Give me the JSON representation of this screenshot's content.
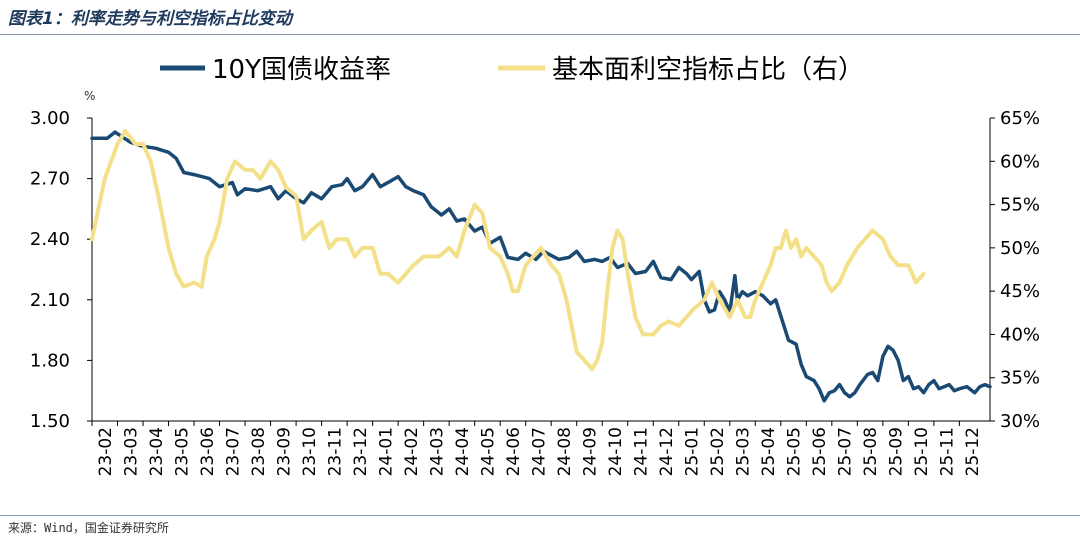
{
  "figure": {
    "title": "图表1：利率走势与利空指标占比变动",
    "source": "来源：Wind，国金证券研究所"
  },
  "colors": {
    "yield": "#1a4a73",
    "ratio": "#f5e08a",
    "axis": "#000000",
    "text": "#000000"
  },
  "chart_data": {
    "type": "line",
    "title": "图表1：利率走势与利空指标占比变动",
    "left_axis": {
      "unit_label": "%",
      "range": [
        1.5,
        3.0
      ],
      "ticks": [
        "3.00",
        "2.70",
        "2.40",
        "2.10",
        "1.80",
        "1.50"
      ],
      "tick_values": [
        3.0,
        2.7,
        2.4,
        2.1,
        1.8,
        1.5
      ]
    },
    "right_axis": {
      "range": [
        30,
        65
      ],
      "ticks": [
        "65%",
        "60%",
        "55%",
        "50%",
        "45%",
        "40%",
        "35%",
        "30%"
      ],
      "tick_values": [
        65,
        60,
        55,
        50,
        45,
        40,
        35,
        30
      ]
    },
    "x_range": [
      0,
      35.2
    ],
    "categories": [
      "23-02",
      "23-03",
      "23-04",
      "23-05",
      "23-06",
      "23-07",
      "23-08",
      "23-09",
      "23-10",
      "23-11",
      "23-12",
      "24-01",
      "24-02",
      "24-03",
      "24-04",
      "24-05",
      "24-06",
      "24-07",
      "24-08",
      "24-09",
      "24-10",
      "24-11",
      "24-12",
      "25-01",
      "25-02",
      "25-03",
      "25-04",
      "25-05",
      "25-06",
      "25-07",
      "25-08",
      "25-09",
      "25-10",
      "25-11",
      "25-12"
    ],
    "series": [
      {
        "name": "10Y国债收益率",
        "axis": "left",
        "points": [
          [
            0,
            2.9
          ],
          [
            0.6,
            2.9
          ],
          [
            0.9,
            2.93
          ],
          [
            1.5,
            2.88
          ],
          [
            2.0,
            2.86
          ],
          [
            2.5,
            2.85
          ],
          [
            3.0,
            2.83
          ],
          [
            3.3,
            2.8
          ],
          [
            3.6,
            2.73
          ],
          [
            4.0,
            2.72
          ],
          [
            4.6,
            2.7
          ],
          [
            5.0,
            2.66
          ],
          [
            5.5,
            2.68
          ],
          [
            5.7,
            2.62
          ],
          [
            6.0,
            2.65
          ],
          [
            6.5,
            2.64
          ],
          [
            7.0,
            2.66
          ],
          [
            7.3,
            2.6
          ],
          [
            7.6,
            2.64
          ],
          [
            8.0,
            2.6
          ],
          [
            8.3,
            2.58
          ],
          [
            8.6,
            2.63
          ],
          [
            9.0,
            2.6
          ],
          [
            9.4,
            2.66
          ],
          [
            9.8,
            2.67
          ],
          [
            10.0,
            2.7
          ],
          [
            10.3,
            2.64
          ],
          [
            10.6,
            2.66
          ],
          [
            11.0,
            2.72
          ],
          [
            11.3,
            2.66
          ],
          [
            11.6,
            2.68
          ],
          [
            12.0,
            2.71
          ],
          [
            12.3,
            2.66
          ],
          [
            12.6,
            2.64
          ],
          [
            13.0,
            2.62
          ],
          [
            13.3,
            2.56
          ],
          [
            13.7,
            2.52
          ],
          [
            14.0,
            2.55
          ],
          [
            14.3,
            2.49
          ],
          [
            14.6,
            2.5
          ],
          [
            15.0,
            2.44
          ],
          [
            15.3,
            2.46
          ],
          [
            15.6,
            2.38
          ],
          [
            16.0,
            2.41
          ],
          [
            16.3,
            2.31
          ],
          [
            16.7,
            2.3
          ],
          [
            17.0,
            2.33
          ],
          [
            17.4,
            2.3
          ],
          [
            17.7,
            2.34
          ],
          [
            18.0,
            2.32
          ],
          [
            18.3,
            2.3
          ],
          [
            18.7,
            2.31
          ],
          [
            19.0,
            2.34
          ],
          [
            19.3,
            2.29
          ],
          [
            19.7,
            2.3
          ],
          [
            20.0,
            2.29
          ],
          [
            20.3,
            2.31
          ],
          [
            20.6,
            2.26
          ],
          [
            21.0,
            2.28
          ],
          [
            21.3,
            2.23
          ],
          [
            21.7,
            2.24
          ],
          [
            22.0,
            2.29
          ],
          [
            22.3,
            2.21
          ],
          [
            22.7,
            2.2
          ],
          [
            23.0,
            2.26
          ],
          [
            23.3,
            2.23
          ],
          [
            23.5,
            2.2
          ],
          [
            23.8,
            2.24
          ],
          [
            24.0,
            2.1
          ],
          [
            24.2,
            2.04
          ],
          [
            24.4,
            2.05
          ],
          [
            24.6,
            2.14
          ],
          [
            24.8,
            2.1
          ],
          [
            25.0,
            2.04
          ],
          [
            25.2,
            2.22
          ],
          [
            25.3,
            2.1
          ],
          [
            25.5,
            2.14
          ],
          [
            25.7,
            2.12
          ],
          [
            26.0,
            2.14
          ],
          [
            26.3,
            2.12
          ],
          [
            26.6,
            2.08
          ],
          [
            26.8,
            2.1
          ],
          [
            27.0,
            2.02
          ],
          [
            27.3,
            1.9
          ],
          [
            27.6,
            1.88
          ],
          [
            27.8,
            1.78
          ],
          [
            28.0,
            1.72
          ],
          [
            28.3,
            1.7
          ],
          [
            28.5,
            1.66
          ],
          [
            28.7,
            1.6
          ],
          [
            28.9,
            1.64
          ],
          [
            29.1,
            1.65
          ],
          [
            29.3,
            1.68
          ],
          [
            29.5,
            1.64
          ],
          [
            29.7,
            1.62
          ],
          [
            29.9,
            1.64
          ],
          [
            30.1,
            1.68
          ],
          [
            30.4,
            1.73
          ],
          [
            30.6,
            1.74
          ],
          [
            30.8,
            1.7
          ],
          [
            31.0,
            1.82
          ],
          [
            31.2,
            1.87
          ],
          [
            31.4,
            1.85
          ],
          [
            31.6,
            1.8
          ],
          [
            31.8,
            1.7
          ],
          [
            32.0,
            1.72
          ],
          [
            32.2,
            1.66
          ],
          [
            32.4,
            1.67
          ],
          [
            32.6,
            1.64
          ],
          [
            32.8,
            1.68
          ],
          [
            33.0,
            1.7
          ],
          [
            33.2,
            1.66
          ],
          [
            33.4,
            1.67
          ],
          [
            33.6,
            1.68
          ],
          [
            33.8,
            1.65
          ],
          [
            34.0,
            1.66
          ],
          [
            34.3,
            1.67
          ],
          [
            34.6,
            1.64
          ],
          [
            34.8,
            1.67
          ],
          [
            35.0,
            1.68
          ],
          [
            35.2,
            1.67
          ]
        ]
      },
      {
        "name": "基本面利空指标占比（右）",
        "axis": "right",
        "points": [
          [
            0,
            51
          ],
          [
            0.5,
            58
          ],
          [
            1.0,
            62
          ],
          [
            1.3,
            63.5
          ],
          [
            1.7,
            62
          ],
          [
            2.0,
            62
          ],
          [
            2.3,
            60
          ],
          [
            2.6,
            56
          ],
          [
            3.0,
            50
          ],
          [
            3.3,
            47
          ],
          [
            3.6,
            45.5
          ],
          [
            4.0,
            46
          ],
          [
            4.3,
            45.5
          ],
          [
            4.5,
            49
          ],
          [
            4.8,
            51
          ],
          [
            5.0,
            53
          ],
          [
            5.3,
            58
          ],
          [
            5.6,
            60
          ],
          [
            6.0,
            59
          ],
          [
            6.3,
            59
          ],
          [
            6.6,
            58
          ],
          [
            7.0,
            60
          ],
          [
            7.3,
            59
          ],
          [
            7.6,
            57
          ],
          [
            8.0,
            56
          ],
          [
            8.3,
            51
          ],
          [
            8.6,
            52
          ],
          [
            9.0,
            53
          ],
          [
            9.3,
            50
          ],
          [
            9.6,
            51
          ],
          [
            10.0,
            51
          ],
          [
            10.3,
            49
          ],
          [
            10.6,
            50
          ],
          [
            11.0,
            50
          ],
          [
            11.3,
            47
          ],
          [
            11.6,
            47
          ],
          [
            12.0,
            46
          ],
          [
            12.3,
            47
          ],
          [
            12.6,
            48
          ],
          [
            13.0,
            49
          ],
          [
            13.3,
            49
          ],
          [
            13.6,
            49
          ],
          [
            14.0,
            50
          ],
          [
            14.3,
            49
          ],
          [
            14.6,
            52
          ],
          [
            15.0,
            55
          ],
          [
            15.3,
            54
          ],
          [
            15.6,
            50
          ],
          [
            16.0,
            49
          ],
          [
            16.3,
            47
          ],
          [
            16.5,
            45
          ],
          [
            16.7,
            45
          ],
          [
            17.0,
            48
          ],
          [
            17.3,
            49
          ],
          [
            17.6,
            50
          ],
          [
            18.0,
            48
          ],
          [
            18.3,
            47
          ],
          [
            18.6,
            44
          ],
          [
            19.0,
            38
          ],
          [
            19.3,
            37
          ],
          [
            19.6,
            36
          ],
          [
            19.8,
            37
          ],
          [
            20.0,
            39
          ],
          [
            20.2,
            45
          ],
          [
            20.4,
            50
          ],
          [
            20.6,
            52
          ],
          [
            20.8,
            51
          ],
          [
            21.0,
            47
          ],
          [
            21.3,
            42
          ],
          [
            21.6,
            40
          ],
          [
            22.0,
            40
          ],
          [
            22.3,
            41
          ],
          [
            22.6,
            41.5
          ],
          [
            23.0,
            41
          ],
          [
            23.3,
            42
          ],
          [
            23.6,
            43
          ],
          [
            24.0,
            44
          ],
          [
            24.3,
            46
          ],
          [
            24.6,
            44
          ],
          [
            25.0,
            42
          ],
          [
            25.3,
            44
          ],
          [
            25.6,
            42
          ],
          [
            25.8,
            42
          ],
          [
            26.0,
            44
          ],
          [
            26.3,
            46
          ],
          [
            26.6,
            48
          ],
          [
            26.8,
            50
          ],
          [
            27.0,
            50
          ],
          [
            27.2,
            52
          ],
          [
            27.4,
            50
          ],
          [
            27.6,
            51
          ],
          [
            27.8,
            49
          ],
          [
            28.0,
            50
          ],
          [
            28.3,
            49
          ],
          [
            28.6,
            48
          ],
          [
            28.8,
            46
          ],
          [
            29.0,
            45
          ],
          [
            29.3,
            46
          ],
          [
            29.6,
            48
          ],
          [
            30.0,
            50
          ],
          [
            30.3,
            51
          ],
          [
            30.6,
            52
          ],
          [
            31.0,
            51
          ],
          [
            31.3,
            49
          ],
          [
            31.6,
            48
          ],
          [
            32.0,
            48
          ],
          [
            32.3,
            46
          ],
          [
            32.6,
            47
          ]
        ]
      }
    ]
  },
  "legend": {
    "yield_label": "10Y国债收益率",
    "ratio_label": "基本面利空指标占比（右）"
  }
}
